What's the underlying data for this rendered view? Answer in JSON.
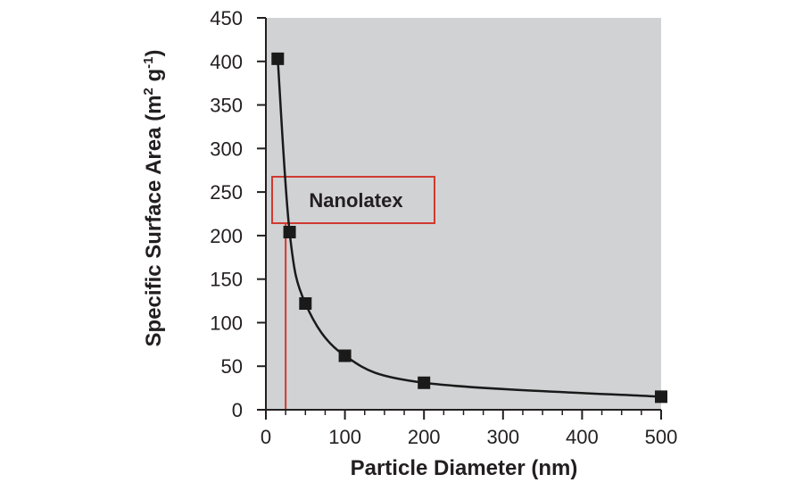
{
  "chart_data": {
    "type": "scatter",
    "title": "",
    "xlabel": "Particle Diameter (nm)",
    "ylabel_parts": {
      "main": "Specific Surface Area (m",
      "sup1": "2",
      "mid": " g",
      "sup2": "-1",
      "end": ")"
    },
    "xlim": [
      0,
      500
    ],
    "ylim": [
      0,
      450
    ],
    "x_ticks": [
      0,
      100,
      200,
      300,
      400,
      500
    ],
    "y_ticks": [
      0,
      50,
      100,
      150,
      200,
      250,
      300,
      350,
      400,
      450
    ],
    "series": [
      {
        "x": [
          15,
          30,
          50,
          100,
          200,
          500
        ],
        "y": [
          403,
          204,
          122,
          62,
          31,
          15
        ],
        "marker": "square",
        "line": "smooth"
      }
    ],
    "annotations": [
      {
        "text": "Nanolatex",
        "x_marker": 25,
        "color": "#d03a2f"
      }
    ],
    "plot_background": "#d1d2d4",
    "grid": false,
    "legend": "none"
  }
}
